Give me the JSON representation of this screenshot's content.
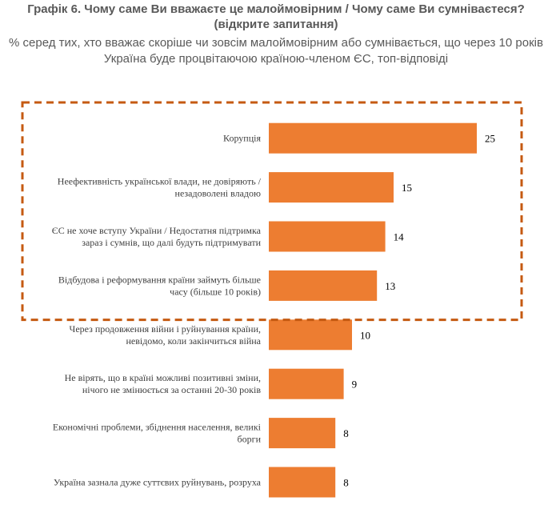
{
  "header": {
    "title_line1": "Графік 6. Чому саме Ви вважаєте це малоймовірним / Чому саме Ви сумніваєтеся?",
    "title_line2": "(відкрите запитання)",
    "subtitle_line1": "% серед тих, хто вважає скоріше чи зовсім малоймовірним або сумнівається, що через 10 років",
    "subtitle_line2": "Україна буде процвітаючою країною-членом ЄС, топ-відповіді"
  },
  "colors": {
    "bar": "#ED7D31",
    "highlight_border": "#C55A11",
    "title_text": "#595959"
  },
  "chart_data": {
    "type": "bar",
    "orientation": "horizontal",
    "categories": [
      [
        "Корупція"
      ],
      [
        "Неефективність української влади, не довіряють /",
        "незадоволені владою"
      ],
      [
        "ЄС не хоче вступу України / Недостатня підтримка",
        "зараз і сумнів, що далі будуть підтримувати"
      ],
      [
        "Відбудова і реформування країни займуть більше",
        "часу (більше 10 років)"
      ],
      [
        "Через продовження війни і руйнування країни,",
        "невідомо, коли закінчиться війна"
      ],
      [
        "Не вірять, що в країні можливі позитивні зміни,",
        "нічого не змінюється за останні 20-30 років"
      ],
      [
        "Економічні проблеми, збіднення населення, великі",
        "борги"
      ],
      [
        "Україна зазнала дуже суттєвих руйнувань, розруха"
      ]
    ],
    "values": [
      25,
      15,
      14,
      13,
      10,
      9,
      8,
      8
    ],
    "xlim": [
      0,
      25
    ],
    "grid": false,
    "legend": "none",
    "highlighted_range": [
      0,
      3
    ]
  }
}
